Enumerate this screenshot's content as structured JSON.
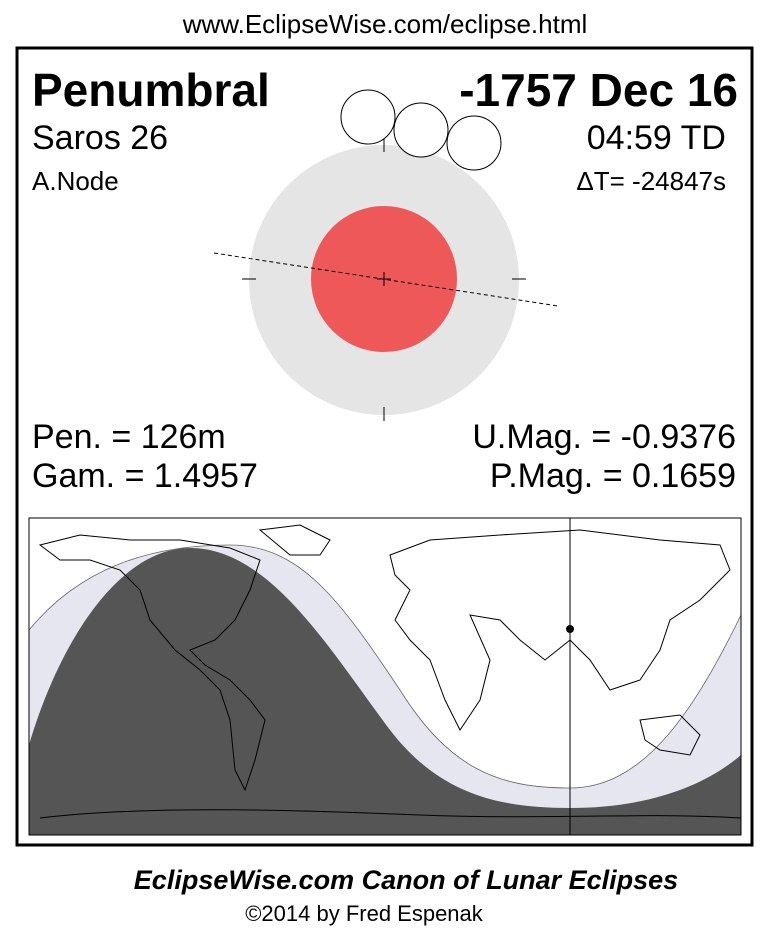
{
  "header": {
    "url": "www.EclipseWise.com/eclipse.html"
  },
  "eclipse": {
    "type": "Penumbral",
    "date": "-1757 Dec 16",
    "saros": "Saros  26",
    "time": "04:59 TD",
    "node": "A.Node",
    "delta_t": "ΔT= -24847s",
    "pen": "Pen. = 126m",
    "gam": "Gam. = 1.4957",
    "umag": "U.Mag. = -0.9376",
    "pmag": "P.Mag. = 0.1659"
  },
  "footer": {
    "title": "EclipseWise.com Canon of Lunar Eclipses",
    "copyright": "©2014 by Fred Espenak"
  }
}
